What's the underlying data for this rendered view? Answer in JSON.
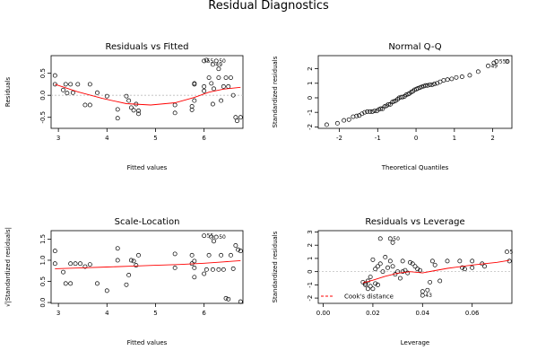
{
  "figure": {
    "title": "Residual Diagnostics"
  },
  "chart_data": [
    {
      "type": "scatter",
      "title": "Residuals vs Fitted",
      "xlabel": "Fitted values",
      "ylabel": "Residuals",
      "xlim": [
        2.85,
        6.8
      ],
      "ylim": [
        -0.75,
        0.9
      ],
      "xticks": [
        "3",
        "4",
        "5",
        "6"
      ],
      "yticks": [
        "-0.5",
        "0.0",
        "0.5"
      ],
      "grid": false,
      "ref_line": 0,
      "points": [
        [
          2.93,
          0.45
        ],
        [
          2.93,
          0.25
        ],
        [
          3.1,
          0.12
        ],
        [
          3.15,
          0.25
        ],
        [
          3.18,
          0.05
        ],
        [
          3.25,
          0.25
        ],
        [
          3.3,
          0.06
        ],
        [
          3.4,
          0.25
        ],
        [
          3.55,
          -0.22
        ],
        [
          3.65,
          -0.22
        ],
        [
          3.65,
          0.25
        ],
        [
          3.8,
          0.06
        ],
        [
          4.0,
          -0.02
        ],
        [
          4.22,
          -0.32
        ],
        [
          4.22,
          -0.52
        ],
        [
          4.4,
          -0.02
        ],
        [
          4.45,
          -0.12
        ],
        [
          4.5,
          -0.28
        ],
        [
          4.55,
          -0.34
        ],
        [
          4.6,
          -0.2
        ],
        [
          4.65,
          -0.42
        ],
        [
          4.65,
          -0.35
        ],
        [
          5.4,
          -0.22
        ],
        [
          5.4,
          -0.4
        ],
        [
          5.75,
          -0.25
        ],
        [
          5.75,
          -0.33
        ],
        [
          5.8,
          0.27
        ],
        [
          5.8,
          0.25
        ],
        [
          5.8,
          -0.12
        ],
        [
          6.0,
          0.78
        ],
        [
          6.0,
          0.1
        ],
        [
          6.0,
          0.2
        ],
        [
          6.05,
          0.8
        ],
        [
          6.1,
          0.4
        ],
        [
          6.15,
          0.27
        ],
        [
          6.18,
          0.7
        ],
        [
          6.18,
          -0.2
        ],
        [
          6.2,
          0.15
        ],
        [
          6.25,
          0.78
        ],
        [
          6.3,
          0.4
        ],
        [
          6.3,
          0.6
        ],
        [
          6.35,
          -0.12
        ],
        [
          6.4,
          0.2
        ],
        [
          6.45,
          0.4
        ],
        [
          6.5,
          0.2
        ],
        [
          6.55,
          0.4
        ],
        [
          6.6,
          0.0
        ],
        [
          6.65,
          -0.5
        ],
        [
          6.68,
          -0.58
        ],
        [
          6.75,
          -0.5
        ]
      ],
      "smooth": [
        [
          2.93,
          0.25
        ],
        [
          3.4,
          0.08
        ],
        [
          3.9,
          -0.07
        ],
        [
          4.4,
          -0.19
        ],
        [
          4.9,
          -0.22
        ],
        [
          5.4,
          -0.17
        ],
        [
          5.8,
          -0.05
        ],
        [
          6.1,
          0.07
        ],
        [
          6.4,
          0.14
        ],
        [
          6.75,
          0.18
        ]
      ],
      "point_labels": [
        {
          "text": "55",
          "x": 6.0,
          "y": 0.78
        },
        {
          "text": "49",
          "x": 6.18,
          "y": 0.7
        },
        {
          "text": "50",
          "x": 6.25,
          "y": 0.78
        }
      ]
    },
    {
      "type": "scatter",
      "title": "Normal Q-Q",
      "xlabel": "Theoretical Quantiles",
      "ylabel": "Standardized residuals",
      "xlim": [
        -2.55,
        2.5
      ],
      "ylim": [
        -2.1,
        2.9
      ],
      "xticks": [
        "-2",
        "-1",
        "0",
        "1",
        "2"
      ],
      "yticks": [
        "-2",
        "-1",
        "0",
        "1",
        "2"
      ],
      "grid": false,
      "points": [
        [
          -2.33,
          -1.85
        ],
        [
          -2.05,
          -1.75
        ],
        [
          -1.88,
          -1.55
        ],
        [
          -1.75,
          -1.5
        ],
        [
          -1.64,
          -1.3
        ],
        [
          -1.55,
          -1.25
        ],
        [
          -1.48,
          -1.22
        ],
        [
          -1.41,
          -1.1
        ],
        [
          -1.34,
          -1.0
        ],
        [
          -1.27,
          -0.95
        ],
        [
          -1.2,
          -0.95
        ],
        [
          -1.14,
          -0.95
        ],
        [
          -1.08,
          -0.9
        ],
        [
          -1.02,
          -0.9
        ],
        [
          -0.97,
          -0.8
        ],
        [
          -0.92,
          -0.75
        ],
        [
          -0.87,
          -0.75
        ],
        [
          -0.82,
          -0.6
        ],
        [
          -0.77,
          -0.55
        ],
        [
          -0.72,
          -0.45
        ],
        [
          -0.67,
          -0.45
        ],
        [
          -0.62,
          -0.3
        ],
        [
          -0.58,
          -0.25
        ],
        [
          -0.53,
          -0.2
        ],
        [
          -0.48,
          -0.1
        ],
        [
          -0.44,
          0.0
        ],
        [
          -0.39,
          0.05
        ],
        [
          -0.35,
          0.05
        ],
        [
          -0.3,
          0.1
        ],
        [
          -0.26,
          0.2
        ],
        [
          -0.21,
          0.25
        ],
        [
          -0.17,
          0.3
        ],
        [
          -0.12,
          0.4
        ],
        [
          -0.08,
          0.45
        ],
        [
          -0.04,
          0.55
        ],
        [
          0.01,
          0.6
        ],
        [
          0.05,
          0.65
        ],
        [
          0.1,
          0.7
        ],
        [
          0.15,
          0.75
        ],
        [
          0.2,
          0.8
        ],
        [
          0.25,
          0.85
        ],
        [
          0.3,
          0.85
        ],
        [
          0.36,
          0.9
        ],
        [
          0.42,
          0.9
        ],
        [
          0.48,
          0.95
        ],
        [
          0.55,
          1.0
        ],
        [
          0.63,
          1.1
        ],
        [
          0.72,
          1.2
        ],
        [
          0.82,
          1.25
        ],
        [
          0.93,
          1.3
        ],
        [
          1.05,
          1.4
        ],
        [
          1.2,
          1.45
        ],
        [
          1.4,
          1.55
        ],
        [
          1.62,
          1.8
        ],
        [
          1.88,
          2.2
        ],
        [
          2.03,
          2.4
        ],
        [
          2.1,
          2.5
        ],
        [
          2.38,
          2.5
        ]
      ],
      "point_labels": [
        {
          "text": "49",
          "x": 1.88,
          "y": 2.2
        },
        {
          "text": "550",
          "x": 2.1,
          "y": 2.5
        }
      ]
    },
    {
      "type": "scatter",
      "title": "Scale-Location",
      "xlabel": "Fitted values",
      "ylabel": "√|Standardized residuals|",
      "xlim": [
        2.85,
        6.8
      ],
      "ylim": [
        -0.02,
        1.7
      ],
      "xticks": [
        "3",
        "4",
        "5",
        "6"
      ],
      "yticks": [
        "0.0",
        "0.5",
        "1.0",
        "1.5"
      ],
      "grid": false,
      "points": [
        [
          2.93,
          1.22
        ],
        [
          2.93,
          0.92
        ],
        [
          3.1,
          0.72
        ],
        [
          3.15,
          0.45
        ],
        [
          3.25,
          0.92
        ],
        [
          3.25,
          0.45
        ],
        [
          3.35,
          0.92
        ],
        [
          3.45,
          0.92
        ],
        [
          3.55,
          0.85
        ],
        [
          3.65,
          0.9
        ],
        [
          3.8,
          0.45
        ],
        [
          4.0,
          0.28
        ],
        [
          4.22,
          1.28
        ],
        [
          4.22,
          1.0
        ],
        [
          4.4,
          0.42
        ],
        [
          4.45,
          0.65
        ],
        [
          4.5,
          1.0
        ],
        [
          4.55,
          0.98
        ],
        [
          4.6,
          0.88
        ],
        [
          4.65,
          1.12
        ],
        [
          5.4,
          1.15
        ],
        [
          5.4,
          0.82
        ],
        [
          5.75,
          0.92
        ],
        [
          5.75,
          1.12
        ],
        [
          5.8,
          0.82
        ],
        [
          5.8,
          0.98
        ],
        [
          5.8,
          0.6
        ],
        [
          6.0,
          1.58
        ],
        [
          6.0,
          0.68
        ],
        [
          6.05,
          0.78
        ],
        [
          6.1,
          1.12
        ],
        [
          6.15,
          1.55
        ],
        [
          6.18,
          0.78
        ],
        [
          6.2,
          1.45
        ],
        [
          6.25,
          1.55
        ],
        [
          6.3,
          0.78
        ],
        [
          6.35,
          1.12
        ],
        [
          6.4,
          0.78
        ],
        [
          6.45,
          0.1
        ],
        [
          6.5,
          0.08
        ],
        [
          6.55,
          1.12
        ],
        [
          6.6,
          0.8
        ],
        [
          6.65,
          1.35
        ],
        [
          6.7,
          1.25
        ],
        [
          6.75,
          1.22
        ],
        [
          6.75,
          0.02
        ]
      ],
      "smooth": [
        [
          2.93,
          0.8
        ],
        [
          3.5,
          0.82
        ],
        [
          4.0,
          0.84
        ],
        [
          4.5,
          0.86
        ],
        [
          5.0,
          0.88
        ],
        [
          5.5,
          0.9
        ],
        [
          6.0,
          0.93
        ],
        [
          6.4,
          0.96
        ],
        [
          6.75,
          0.99
        ]
      ],
      "point_labels": [
        {
          "text": "55",
          "x": 6.0,
          "y": 1.58
        },
        {
          "text": "50",
          "x": 6.25,
          "y": 1.55
        }
      ]
    },
    {
      "type": "scatter",
      "title": "Residuals vs Leverage",
      "xlabel": "Leverage",
      "ylabel": "Standardized residuals",
      "xlim": [
        -0.002,
        0.076
      ],
      "ylim": [
        -2.4,
        3.1
      ],
      "xticks": [
        "0.00",
        "0.02",
        "0.04",
        "0.06"
      ],
      "yticks": [
        "-2",
        "-1",
        "0",
        "1",
        "2",
        "3"
      ],
      "grid": false,
      "ref_line": 0,
      "points": [
        [
          0.016,
          -0.8
        ],
        [
          0.017,
          -1.0
        ],
        [
          0.017,
          -0.9
        ],
        [
          0.018,
          -1.3
        ],
        [
          0.018,
          -0.7
        ],
        [
          0.019,
          -1.1
        ],
        [
          0.019,
          -0.4
        ],
        [
          0.02,
          -1.3
        ],
        [
          0.02,
          0.9
        ],
        [
          0.021,
          -0.9
        ],
        [
          0.021,
          0.2
        ],
        [
          0.022,
          0.4
        ],
        [
          0.022,
          -1.0
        ],
        [
          0.023,
          2.5
        ],
        [
          0.023,
          0.6
        ],
        [
          0.024,
          0.0
        ],
        [
          0.025,
          1.1
        ],
        [
          0.026,
          0.3
        ],
        [
          0.027,
          2.5
        ],
        [
          0.027,
          0.8
        ],
        [
          0.028,
          0.4
        ],
        [
          0.028,
          2.2
        ],
        [
          0.029,
          -0.2
        ],
        [
          0.03,
          0.0
        ],
        [
          0.031,
          -0.5
        ],
        [
          0.032,
          0.8
        ],
        [
          0.032,
          0.0
        ],
        [
          0.033,
          0.1
        ],
        [
          0.034,
          -0.1
        ],
        [
          0.035,
          0.7
        ],
        [
          0.036,
          0.6
        ],
        [
          0.037,
          0.4
        ],
        [
          0.038,
          0.2
        ],
        [
          0.039,
          0.1
        ],
        [
          0.04,
          -1.5
        ],
        [
          0.04,
          -1.8
        ],
        [
          0.042,
          -1.4
        ],
        [
          0.043,
          -0.8
        ],
        [
          0.044,
          0.8
        ],
        [
          0.045,
          0.5
        ],
        [
          0.047,
          -0.7
        ],
        [
          0.05,
          0.8
        ],
        [
          0.055,
          0.8
        ],
        [
          0.056,
          0.3
        ],
        [
          0.057,
          0.2
        ],
        [
          0.06,
          0.8
        ],
        [
          0.06,
          0.3
        ],
        [
          0.064,
          0.6
        ],
        [
          0.065,
          0.4
        ],
        [
          0.074,
          1.5
        ],
        [
          0.075,
          0.8
        ]
      ],
      "smooth": [
        [
          0.016,
          -0.85
        ],
        [
          0.02,
          -0.65
        ],
        [
          0.025,
          -0.35
        ],
        [
          0.03,
          -0.12
        ],
        [
          0.035,
          0.0
        ],
        [
          0.04,
          -0.1
        ],
        [
          0.045,
          0.08
        ],
        [
          0.05,
          0.25
        ],
        [
          0.06,
          0.5
        ],
        [
          0.07,
          0.7
        ],
        [
          0.075,
          0.85
        ]
      ],
      "point_labels": [
        {
          "text": "50",
          "x": 0.027,
          "y": 2.5
        },
        {
          "text": "43",
          "x": 0.04,
          "y": -1.8
        },
        {
          "text": "5",
          "x": 0.074,
          "y": 1.5
        }
      ],
      "legend": {
        "label": "Cook's distance",
        "position": "bottom-left"
      }
    }
  ],
  "colors": {
    "points": "#000000",
    "smooth": "#ff0000",
    "ref_line": "#bdbdbd",
    "axis": "#000000"
  }
}
